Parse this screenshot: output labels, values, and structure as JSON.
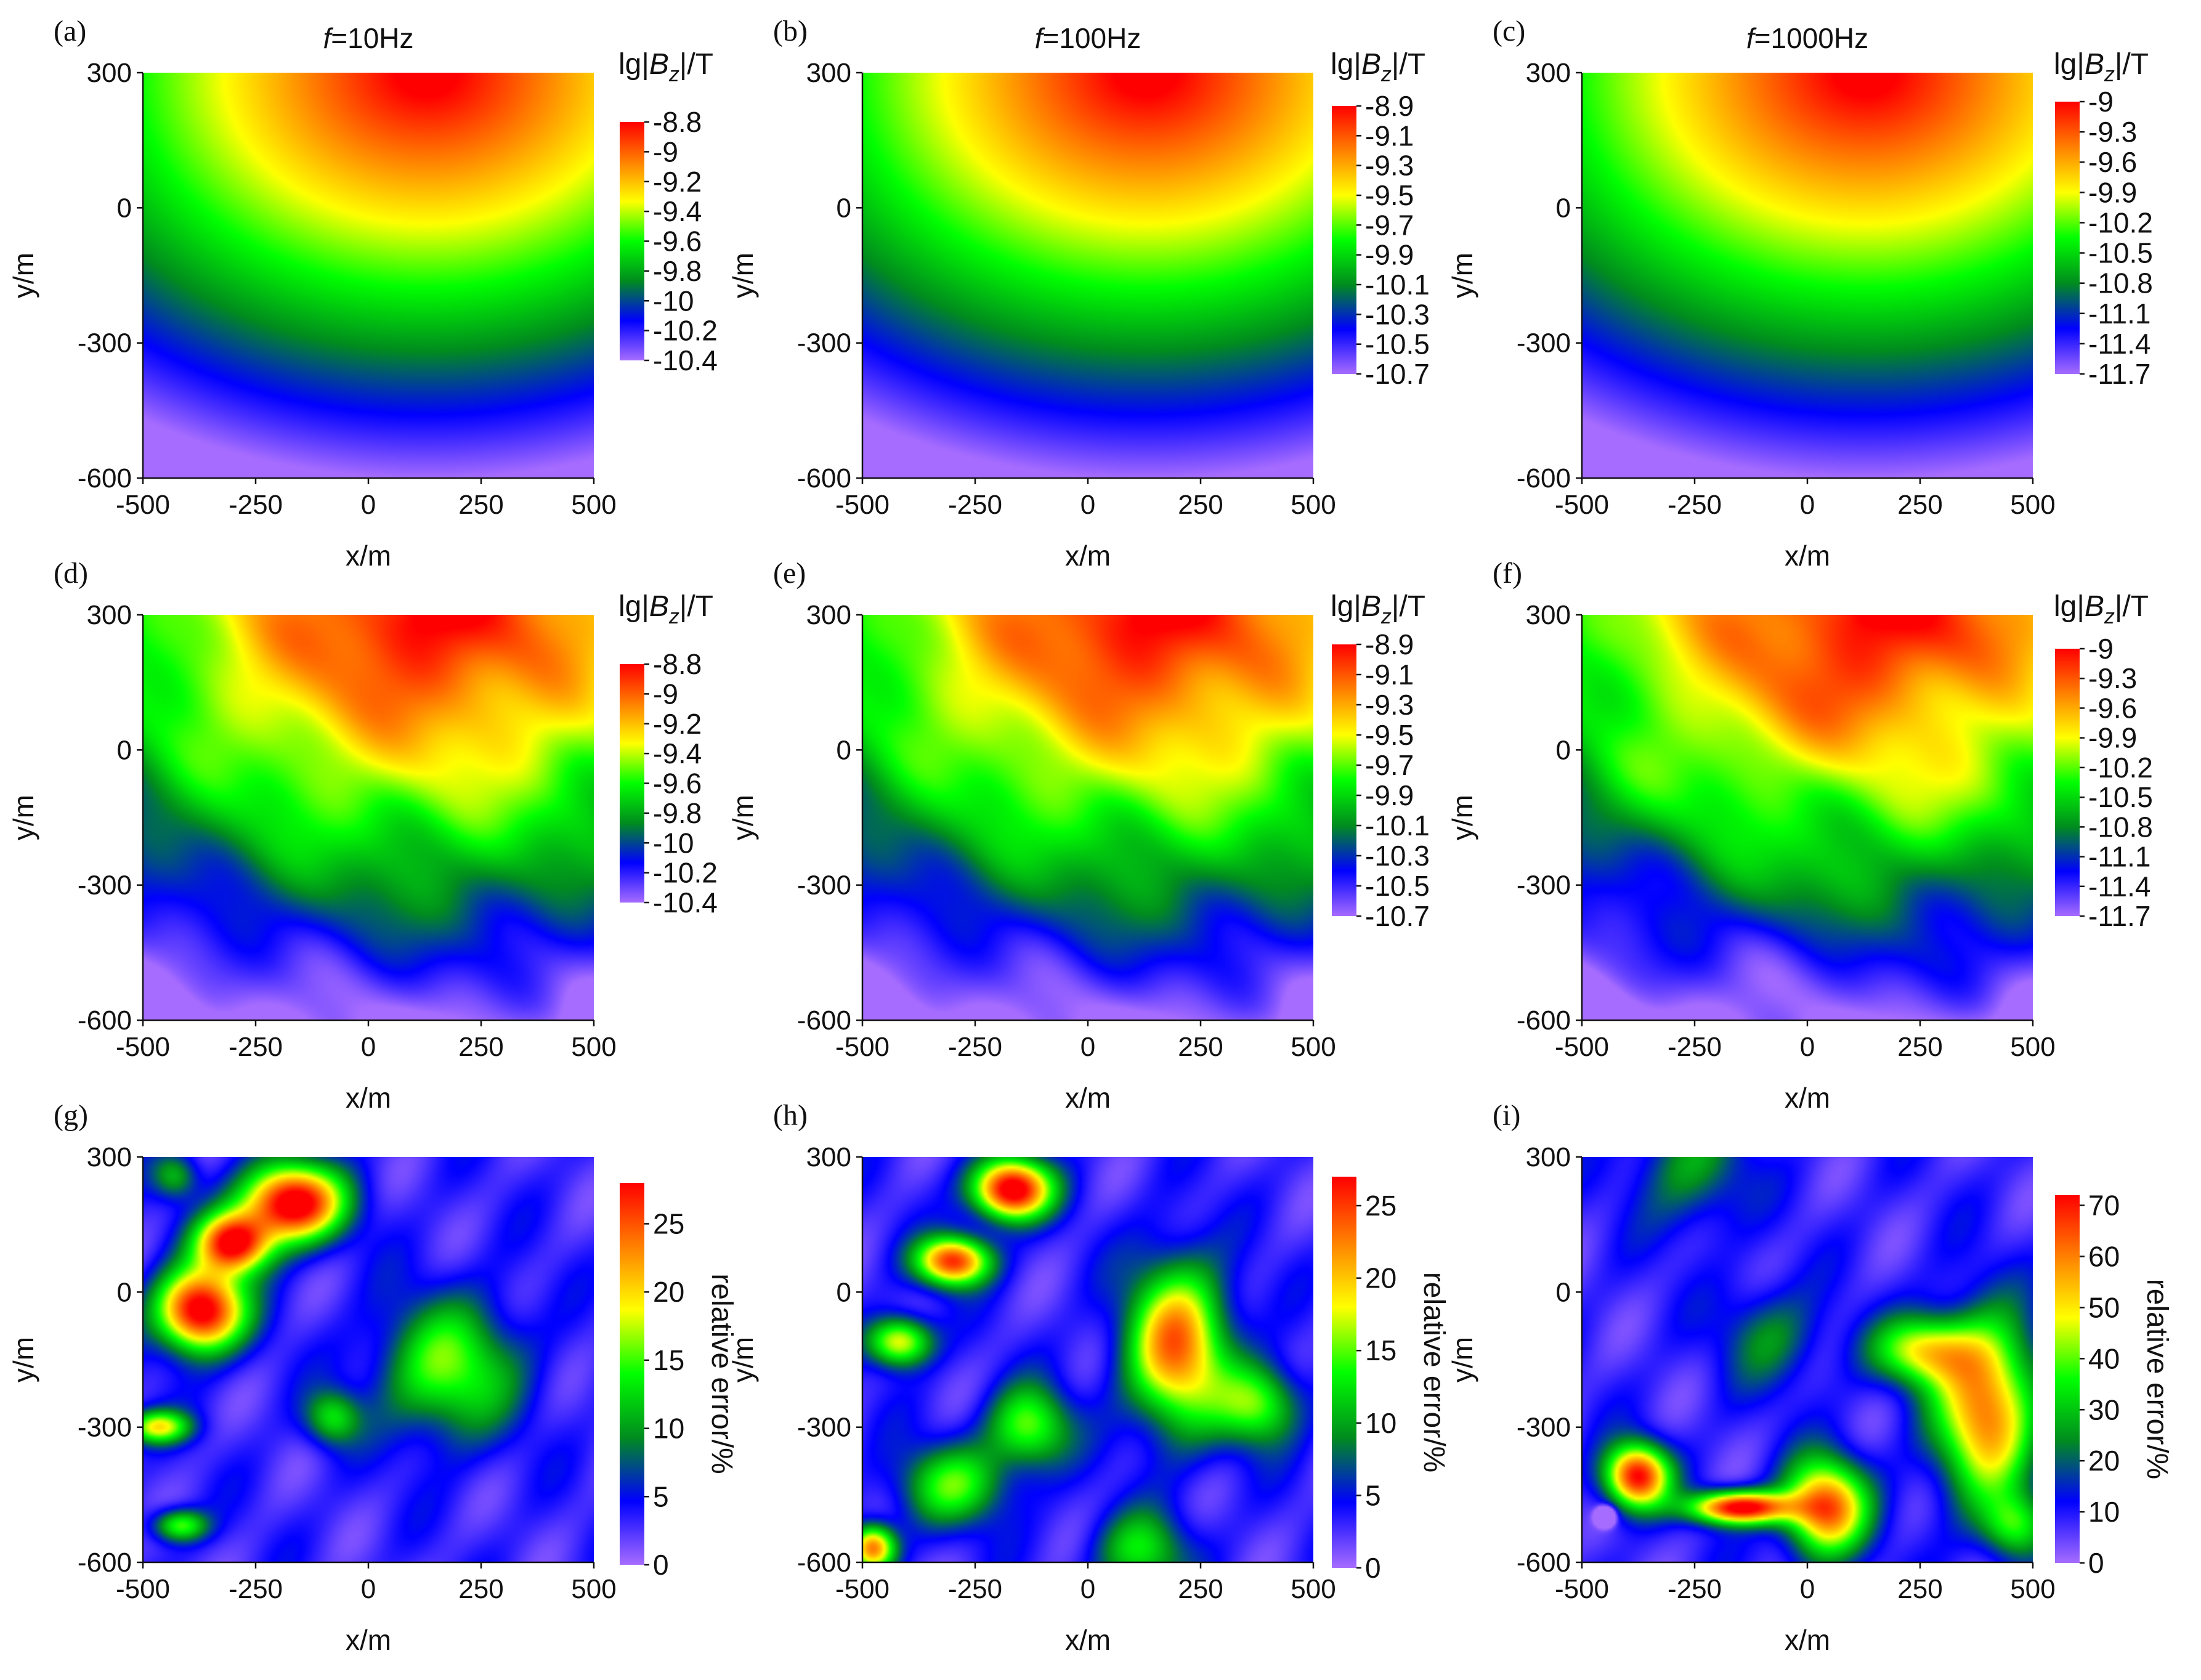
{
  "figure": {
    "colormap": [
      "#a66cff",
      "#0000ff",
      "#008c1e",
      "#00ff00",
      "#ffff00",
      "#ff8000",
      "#ff0000"
    ]
  },
  "chart_data": [
    {
      "panel": "(a)",
      "type": "heatmap",
      "title_prefix": "f",
      "title_suffix": "=10Hz",
      "xlabel": "x/m",
      "ylabel": "y/m",
      "xlim": [
        -500,
        500
      ],
      "ylim": [
        -600,
        300
      ],
      "xticks": [
        "-500",
        "-250",
        "0",
        "250",
        "500"
      ],
      "yticks": [
        "-600",
        "-300",
        "0",
        "300"
      ],
      "colorbar": {
        "label_prefix": "lg|",
        "label_var": "B",
        "label_sub": "z",
        "label_suffix": "|/T",
        "label_vertical": false,
        "range": [
          -10.4,
          -8.8
        ],
        "ticks": [
          "-8.8",
          "-9",
          "-9.2",
          "-9.4",
          "-9.6",
          "-9.8",
          "-10",
          "-10.2",
          "-10.4"
        ]
      },
      "field": {
        "kind": "modeled",
        "noise": 0,
        "extra": 0
      }
    },
    {
      "panel": "(b)",
      "type": "heatmap",
      "title_prefix": "f",
      "title_suffix": "=100Hz",
      "xlabel": "x/m",
      "ylabel": "y/m",
      "xlim": [
        -500,
        500
      ],
      "ylim": [
        -600,
        300
      ],
      "xticks": [
        "-500",
        "-250",
        "0",
        "250",
        "500"
      ],
      "yticks": [
        "-600",
        "-300",
        "0",
        "300"
      ],
      "colorbar": {
        "label_prefix": "lg|",
        "label_var": "B",
        "label_sub": "z",
        "label_suffix": "|/T",
        "label_vertical": false,
        "range": [
          -10.7,
          -8.9
        ],
        "ticks": [
          "-8.9",
          "-9.1",
          "-9.3",
          "-9.5",
          "-9.7",
          "-9.9",
          "-10.1",
          "-10.3",
          "-10.5",
          "-10.7"
        ]
      },
      "field": {
        "kind": "modeled",
        "noise": 0,
        "extra": 0
      }
    },
    {
      "panel": "(c)",
      "type": "heatmap",
      "title_prefix": "f",
      "title_suffix": "=1000Hz",
      "xlabel": "x/m",
      "ylabel": "y/m",
      "xlim": [
        -500,
        500
      ],
      "ylim": [
        -600,
        300
      ],
      "xticks": [
        "-500",
        "-250",
        "0",
        "250",
        "500"
      ],
      "yticks": [
        "-600",
        "-300",
        "0",
        "300"
      ],
      "colorbar": {
        "label_prefix": "lg|",
        "label_var": "B",
        "label_sub": "z",
        "label_suffix": "|/T",
        "label_vertical": false,
        "range": [
          -11.7,
          -9
        ],
        "ticks": [
          "-9",
          "-9.3",
          "-9.6",
          "-9.9",
          "-10.2",
          "-10.5",
          "-10.8",
          "-11.1",
          "-11.4",
          "-11.7"
        ]
      },
      "field": {
        "kind": "modeled",
        "noise": 0,
        "extra": 0
      }
    },
    {
      "panel": "(d)",
      "type": "heatmap",
      "title_prefix": "",
      "title_suffix": "",
      "xlabel": "x/m",
      "ylabel": "y/m",
      "xlim": [
        -500,
        500
      ],
      "ylim": [
        -600,
        300
      ],
      "xticks": [
        "-500",
        "-250",
        "0",
        "250",
        "500"
      ],
      "yticks": [
        "-600",
        "-300",
        "0",
        "300"
      ],
      "colorbar": {
        "label_prefix": "lg|",
        "label_var": "B",
        "label_sub": "z",
        "label_suffix": "|/T",
        "label_vertical": false,
        "range": [
          -10.4,
          -8.8
        ],
        "ticks": [
          "-8.8",
          "-9",
          "-9.2",
          "-9.4",
          "-9.6",
          "-9.8",
          "-10",
          "-10.2",
          "-10.4"
        ]
      },
      "field": {
        "kind": "modeled",
        "noise": 1,
        "extra": 0
      }
    },
    {
      "panel": "(e)",
      "type": "heatmap",
      "title_prefix": "",
      "title_suffix": "",
      "xlabel": "x/m",
      "ylabel": "y/m",
      "xlim": [
        -500,
        500
      ],
      "ylim": [
        -600,
        300
      ],
      "xticks": [
        "-500",
        "-250",
        "0",
        "250",
        "500"
      ],
      "yticks": [
        "-600",
        "-300",
        "0",
        "300"
      ],
      "colorbar": {
        "label_prefix": "lg|",
        "label_var": "B",
        "label_sub": "z",
        "label_suffix": "|/T",
        "label_vertical": false,
        "range": [
          -10.7,
          -8.9
        ],
        "ticks": [
          "-8.9",
          "-9.1",
          "-9.3",
          "-9.5",
          "-9.7",
          "-9.9",
          "-10.1",
          "-10.3",
          "-10.5",
          "-10.7"
        ]
      },
      "field": {
        "kind": "modeled",
        "noise": 1,
        "extra": 0
      }
    },
    {
      "panel": "(f)",
      "type": "heatmap",
      "title_prefix": "",
      "title_suffix": "",
      "xlabel": "x/m",
      "ylabel": "y/m",
      "xlim": [
        -500,
        500
      ],
      "ylim": [
        -600,
        300
      ],
      "xticks": [
        "-500",
        "-250",
        "0",
        "250",
        "500"
      ],
      "yticks": [
        "-600",
        "-300",
        "0",
        "300"
      ],
      "colorbar": {
        "label_prefix": "lg|",
        "label_var": "B",
        "label_sub": "z",
        "label_suffix": "|/T",
        "label_vertical": false,
        "range": [
          -11.7,
          -9
        ],
        "ticks": [
          "-9",
          "-9.3",
          "-9.6",
          "-9.9",
          "-10.2",
          "-10.5",
          "-10.8",
          "-11.1",
          "-11.4",
          "-11.7"
        ]
      },
      "field": {
        "kind": "modeled",
        "noise": 1,
        "extra": 1
      }
    },
    {
      "panel": "(g)",
      "type": "heatmap",
      "title_prefix": "",
      "title_suffix": "",
      "xlabel": "x/m",
      "ylabel": "y/m",
      "xlim": [
        -500,
        500
      ],
      "ylim": [
        -600,
        300
      ],
      "xticks": [
        "-500",
        "-250",
        "0",
        "250",
        "500"
      ],
      "yticks": [
        "-600",
        "-300",
        "0",
        "300"
      ],
      "colorbar": {
        "label_prefix": "relative error/%",
        "label_var": "",
        "label_sub": "",
        "label_suffix": "",
        "label_vertical": true,
        "range": [
          0,
          28
        ],
        "ticks": [
          "25",
          "20",
          "15",
          "10",
          "5",
          "0"
        ]
      },
      "field": {
        "kind": "error",
        "blobs": [
          [
            -375,
            -40,
            1.0,
            95,
            0.33,
            30
          ],
          [
            -170,
            200,
            1.0,
            110,
            0.33,
            28
          ],
          [
            -300,
            110,
            0.9,
            80,
            0.33,
            22
          ],
          [
            -470,
            -300,
            0.55,
            70,
            0.33,
            12
          ],
          [
            -420,
            -520,
            0.45,
            60,
            0.33,
            12
          ],
          [
            180,
            -170,
            0.45,
            150,
            0.33,
            120
          ],
          [
            -80,
            -280,
            0.35,
            60,
            0.33,
            60
          ],
          [
            -430,
            260,
            0.28,
            50,
            0.33,
            60
          ]
        ]
      }
    },
    {
      "panel": "(h)",
      "type": "heatmap",
      "title_prefix": "",
      "title_suffix": "",
      "xlabel": "x/m",
      "ylabel": "y/m",
      "xlim": [
        -500,
        500
      ],
      "ylim": [
        -600,
        300
      ],
      "xticks": [
        "-500",
        "-250",
        "0",
        "250",
        "500"
      ],
      "yticks": [
        "-600",
        "-300",
        "0",
        "300"
      ],
      "colorbar": {
        "label_prefix": "relative error/%",
        "label_var": "",
        "label_sub": "",
        "label_suffix": "",
        "label_vertical": true,
        "range": [
          0,
          27
        ],
        "ticks": [
          "25",
          "20",
          "15",
          "10",
          "5",
          "0"
        ]
      },
      "field": {
        "kind": "error",
        "blobs": [
          [
            -170,
            230,
            1.0,
            85,
            0.33,
            22
          ],
          [
            -300,
            70,
            0.85,
            80,
            0.33,
            18
          ],
          [
            -420,
            -110,
            0.6,
            70,
            0.33,
            18
          ],
          [
            200,
            -120,
            0.75,
            110,
            0.33,
            60
          ],
          [
            -130,
            -300,
            0.45,
            90,
            0.33,
            60
          ],
          [
            -480,
            -570,
            0.75,
            50,
            0.33,
            45
          ],
          [
            -300,
            -430,
            0.4,
            120,
            0.33,
            30
          ],
          [
            380,
            -250,
            0.45,
            90,
            0.33,
            90
          ],
          [
            120,
            -580,
            0.35,
            100,
            0.33,
            30
          ]
        ]
      }
    },
    {
      "panel": "(i)",
      "type": "heatmap",
      "title_prefix": "",
      "title_suffix": "",
      "xlabel": "x/m",
      "ylabel": "y/m",
      "xlim": [
        -500,
        500
      ],
      "ylim": [
        -600,
        300
      ],
      "xticks": [
        "-500",
        "-250",
        "0",
        "250",
        "500"
      ],
      "yticks": [
        "-600",
        "-300",
        "0",
        "300"
      ],
      "colorbar": {
        "label_prefix": "relative error/%",
        "label_var": "",
        "label_sub": "",
        "label_suffix": "",
        "label_vertical": true,
        "range": [
          0,
          72
        ],
        "ticks": [
          "70",
          "60",
          "50",
          "40",
          "30",
          "20",
          "10",
          "0"
        ]
      },
      "field": {
        "kind": "error",
        "blobs": [
          [
            -150,
            -480,
            0.95,
            110,
            0.33,
            12
          ],
          [
            -380,
            -410,
            0.9,
            70,
            0.33,
            45
          ],
          [
            40,
            -480,
            0.8,
            90,
            0.33,
            35
          ],
          [
            400,
            -260,
            0.75,
            110,
            0.33,
            65
          ],
          [
            260,
            -130,
            0.55,
            110,
            0.33,
            25
          ],
          [
            -260,
            280,
            0.25,
            120,
            0.33,
            45
          ],
          [
            -80,
            -100,
            0.22,
            110,
            0.33,
            70
          ],
          [
            460,
            -520,
            0.35,
            70,
            0.33,
            45
          ],
          [
            -450,
            -500,
            -0.9,
            18,
            0.33,
            0
          ]
        ]
      }
    }
  ]
}
